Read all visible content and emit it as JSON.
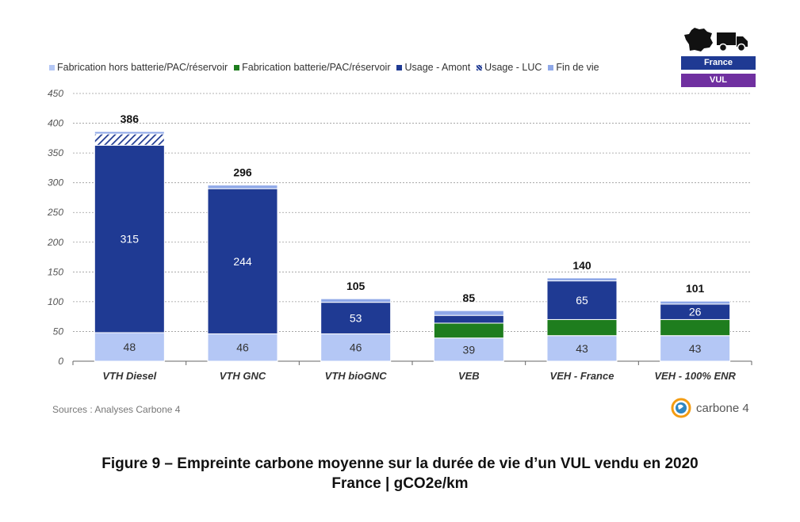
{
  "legend": [
    {
      "label": "Fabrication hors batterie/PAC/réservoir",
      "color": "#b4c7f5",
      "pattern": "solid"
    },
    {
      "label": "Fabrication batterie/PAC/réservoir",
      "color": "#1e7d1e",
      "pattern": "solid"
    },
    {
      "label": "Usage - Amont",
      "color": "#1f3a93",
      "pattern": "solid"
    },
    {
      "label": "Usage - LUC",
      "color": "#1f3a93",
      "pattern": "hatched"
    },
    {
      "label": "Fin de vie",
      "color": "#8fa8e8",
      "pattern": "solid"
    }
  ],
  "badges": {
    "country": "France",
    "vehicle_type": "VUL"
  },
  "icons": [
    "france-map-icon",
    "truck-icon",
    "carbone4-logo-icon"
  ],
  "sources": "Sources : Analyses Carbone 4",
  "logo_text": "carbone 4",
  "caption": {
    "line1": "Figure 9 – Empreinte carbone moyenne sur la durée de vie d’un VUL vendu en 2020",
    "line2": "France | gCO2e/km"
  },
  "chart_data": {
    "type": "bar",
    "stacked": true,
    "categories": [
      "VTH Diesel",
      "VTH GNC",
      "VTH bioGNC",
      "VEB",
      "VEH - France",
      "VEH - 100% ENR"
    ],
    "ylim": [
      0,
      450
    ],
    "yticks": [
      0,
      50,
      100,
      150,
      200,
      250,
      300,
      350,
      400,
      450
    ],
    "grid": true,
    "legend_position": "top",
    "series": [
      {
        "name": "Fabrication hors batterie/PAC/réservoir",
        "color": "#b4c7f5",
        "values": [
          48,
          46,
          46,
          39,
          43,
          43
        ],
        "labels": [
          "48",
          "46",
          "46",
          "39",
          "43",
          "43"
        ]
      },
      {
        "name": "Fabrication batterie/PAC/réservoir",
        "color": "#1e7d1e",
        "values": [
          0,
          0,
          0,
          25,
          27,
          27
        ],
        "labels": [
          "",
          "",
          "",
          "",
          "",
          ""
        ]
      },
      {
        "name": "Usage - Amont",
        "color": "#1f3a93",
        "values": [
          315,
          244,
          53,
          13,
          65,
          26
        ],
        "labels": [
          "315",
          "244",
          "53",
          "",
          "65",
          "26"
        ]
      },
      {
        "name": "Usage - LUC",
        "color": "#1f3a93",
        "pattern": "hatched",
        "values": [
          19,
          0,
          0,
          0,
          0,
          0
        ],
        "labels": [
          "",
          "",
          "",
          "",
          "",
          ""
        ]
      },
      {
        "name": "Fin de vie",
        "color": "#8fa8e8",
        "values": [
          4,
          6,
          6,
          8,
          5,
          5
        ],
        "labels": [
          "",
          "",
          "",
          "",
          "",
          ""
        ]
      }
    ],
    "totals": [
      "386",
      "296",
      "105",
      "85",
      "140",
      "101"
    ]
  }
}
